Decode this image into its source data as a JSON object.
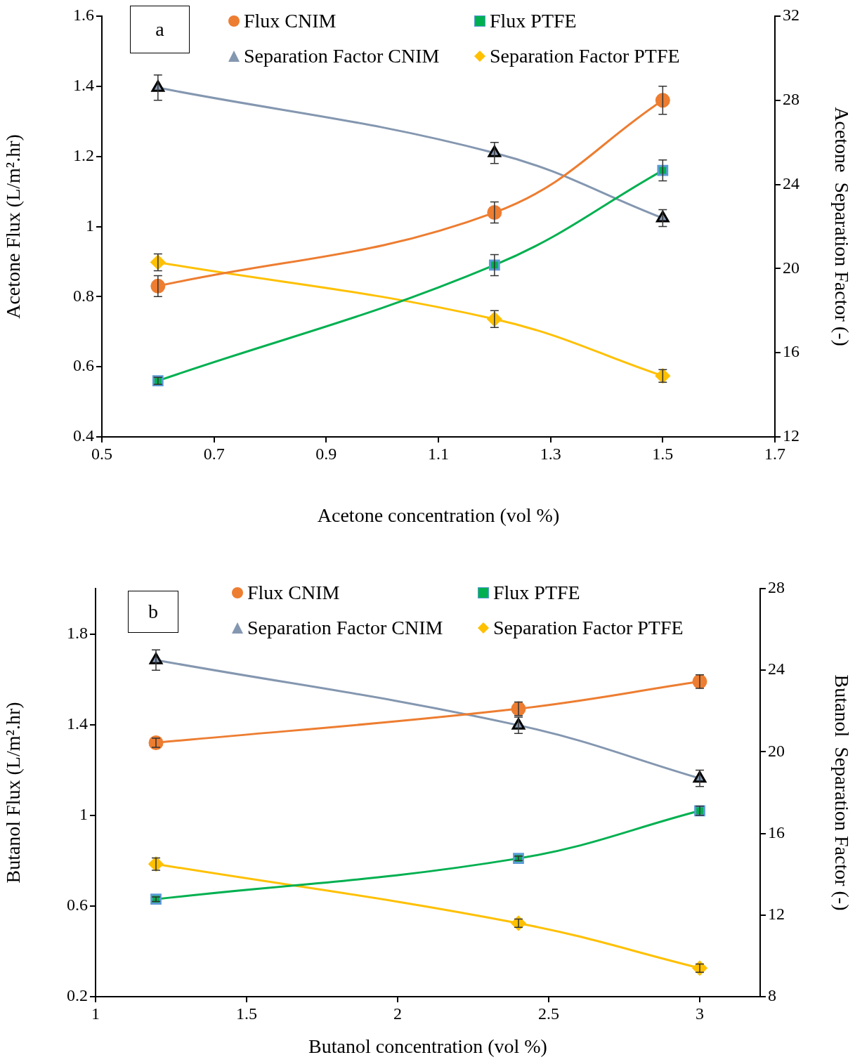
{
  "chart_data": [
    {
      "type": "line",
      "xlabel": "Acetone concentration (vol %)",
      "ylabel": "Acetone Flux (L/m².hr)",
      "y2label": "Acetone  Separation Factor (-)",
      "annotations": [
        "a"
      ],
      "legend": "top",
      "x": [
        0.6,
        1.2,
        1.5
      ],
      "xlim": [
        0.5,
        1.7
      ],
      "xticks": [
        0.5,
        0.7,
        0.9,
        1.1,
        1.3,
        1.5,
        1.7
      ],
      "ylim": [
        0.4,
        1.6
      ],
      "yticks": [
        0.4,
        0.6,
        0.8,
        1,
        1.2,
        1.4,
        1.6
      ],
      "y2lim": [
        12,
        32
      ],
      "y2ticks": [
        12,
        16,
        20,
        24,
        28,
        32
      ],
      "series": [
        {
          "name": "Flux CNIM",
          "color": "#ed7d31",
          "marker": "circle",
          "values": [
            0.83,
            1.04,
            1.36
          ],
          "errors": [
            0.03,
            0.03,
            0.04
          ]
        },
        {
          "name": "Flux PTFE",
          "color": "#00b050",
          "marker": "square",
          "values": [
            0.56,
            0.89,
            1.16
          ],
          "errors": [
            0.01,
            0.03,
            0.03
          ]
        },
        {
          "name": "Separation Factor CNIM",
          "color": "#8497b0",
          "marker": "triangle",
          "axis": "y2",
          "values": [
            28.6,
            25.5,
            22.4
          ],
          "errors": [
            0.6,
            0.5,
            0.4
          ]
        },
        {
          "name": "Separation Factor PTFE",
          "color": "#ffc000",
          "marker": "diamond",
          "axis": "y2",
          "values": [
            20.3,
            17.6,
            14.9
          ],
          "errors": [
            0.4,
            0.4,
            0.3
          ]
        }
      ]
    },
    {
      "type": "line",
      "xlabel": "Butanol concentration (vol %)",
      "ylabel": "Butanol Flux (L/m².hr)",
      "y2label": "Butanol  Separation Factor (-)",
      "annotations": [
        "b"
      ],
      "legend": "top",
      "x": [
        1.2,
        2.4,
        3
      ],
      "xlim": [
        1,
        3.2
      ],
      "xticks": [
        1,
        1.5,
        2,
        2.5,
        3
      ],
      "ylim": [
        0.2,
        2.0
      ],
      "yticks": [
        0.2,
        0.6,
        1,
        1.4,
        1.8
      ],
      "y2lim": [
        8,
        28
      ],
      "y2ticks": [
        8,
        12,
        16,
        20,
        24,
        28
      ],
      "series": [
        {
          "name": "Flux CNIM",
          "color": "#ed7d31",
          "marker": "circle",
          "values": [
            1.32,
            1.47,
            1.59
          ],
          "errors": [
            0.02,
            0.03,
            0.03
          ]
        },
        {
          "name": "Flux PTFE",
          "color": "#00b050",
          "marker": "square",
          "values": [
            0.63,
            0.81,
            1.02
          ],
          "errors": [
            0.01,
            0.01,
            0.02
          ]
        },
        {
          "name": "Separation Factor CNIM",
          "color": "#8497b0",
          "marker": "triangle",
          "axis": "y2",
          "values": [
            24.5,
            21.3,
            18.7
          ],
          "errors": [
            0.5,
            0.4,
            0.4
          ]
        },
        {
          "name": "Separation Factor PTFE",
          "color": "#ffc000",
          "marker": "diamond",
          "axis": "y2",
          "values": [
            14.5,
            11.6,
            9.4
          ],
          "errors": [
            0.3,
            0.2,
            0.2
          ]
        }
      ]
    }
  ]
}
